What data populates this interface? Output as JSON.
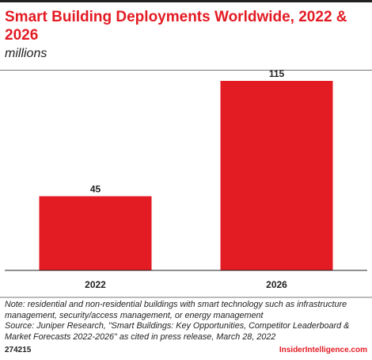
{
  "header": {
    "title": "Smart Building Deployments Worldwide, 2022 & 2026",
    "subtitle": "millions"
  },
  "chart_data": {
    "type": "bar",
    "categories": [
      "2022",
      "2026"
    ],
    "values": [
      45,
      115
    ],
    "data_labels": [
      "45",
      "115"
    ],
    "title": "Smart Building Deployments Worldwide, 2022 & 2026",
    "subtitle": "millions",
    "xlabel": "",
    "ylabel": "",
    "ylim": [
      0,
      115
    ],
    "grid": false,
    "legend": "none",
    "bar_color": "#e31b23"
  },
  "footer": {
    "note": "Note: residential and non-residential buildings with smart technology such as infrastructure management, security/access management, or energy management",
    "source": "Source: Juniper Research, \"Smart Buildings: Key Opportunities, Competitor Leaderboard & Market Forecasts 2022-2026\" as cited in press release, March 28, 2022",
    "chart_id": "274215",
    "brand": "InsiderIntelligence.com"
  },
  "colors": {
    "accent": "#e31b23",
    "text": "#222222"
  }
}
